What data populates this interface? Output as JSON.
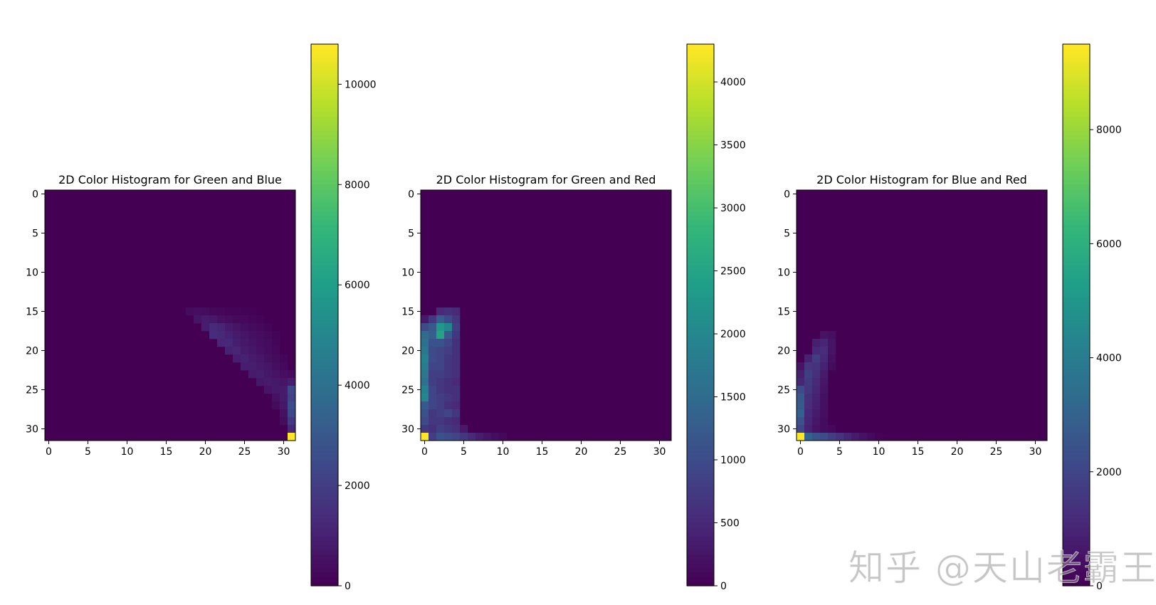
{
  "watermark": "知乎 @天山老霸王",
  "colormap": [
    "#440154",
    "#482878",
    "#3e4989",
    "#31688e",
    "#26828e",
    "#1f9e89",
    "#35b779",
    "#6ece58",
    "#b5de2b",
    "#fde725"
  ],
  "chart_data": [
    {
      "type": "heatmap",
      "title": "2D Color Histogram for Green and Blue",
      "xlabel": "",
      "ylabel": "",
      "xlim": [
        -0.5,
        31.5
      ],
      "ylim": [
        31.5,
        -0.5
      ],
      "xticks": [
        0,
        5,
        10,
        15,
        20,
        25,
        30
      ],
      "yticks": [
        0,
        5,
        10,
        15,
        20,
        25,
        30
      ],
      "colorbar": {
        "range": [
          0,
          10800
        ],
        "ticks": [
          0,
          2000,
          4000,
          6000,
          8000,
          10000
        ]
      },
      "cells": [
        [
          15,
          18,
          300
        ],
        [
          15,
          19,
          400
        ],
        [
          15,
          20,
          350
        ],
        [
          15,
          21,
          250
        ],
        [
          15,
          22,
          180
        ],
        [
          15,
          23,
          120
        ],
        [
          15,
          24,
          100
        ],
        [
          15,
          25,
          80
        ],
        [
          15,
          26,
          60
        ],
        [
          16,
          19,
          600
        ],
        [
          16,
          20,
          800
        ],
        [
          16,
          21,
          700
        ],
        [
          16,
          22,
          500
        ],
        [
          16,
          23,
          350
        ],
        [
          16,
          24,
          250
        ],
        [
          16,
          25,
          200
        ],
        [
          16,
          26,
          150
        ],
        [
          16,
          27,
          100
        ],
        [
          17,
          20,
          900
        ],
        [
          17,
          21,
          1300
        ],
        [
          17,
          22,
          1100
        ],
        [
          17,
          23,
          800
        ],
        [
          17,
          24,
          600
        ],
        [
          17,
          25,
          400
        ],
        [
          17,
          26,
          300
        ],
        [
          17,
          27,
          200
        ],
        [
          17,
          28,
          100
        ],
        [
          18,
          21,
          1400
        ],
        [
          18,
          22,
          1200
        ],
        [
          18,
          23,
          1000
        ],
        [
          18,
          24,
          800
        ],
        [
          18,
          25,
          600
        ],
        [
          18,
          26,
          450
        ],
        [
          18,
          27,
          350
        ],
        [
          18,
          28,
          200
        ],
        [
          18,
          29,
          100
        ],
        [
          19,
          22,
          1100
        ],
        [
          19,
          23,
          1200
        ],
        [
          19,
          24,
          900
        ],
        [
          19,
          25,
          700
        ],
        [
          19,
          26,
          550
        ],
        [
          19,
          27,
          400
        ],
        [
          19,
          28,
          300
        ],
        [
          19,
          29,
          150
        ],
        [
          20,
          23,
          1000
        ],
        [
          20,
          24,
          1100
        ],
        [
          20,
          25,
          800
        ],
        [
          20,
          26,
          650
        ],
        [
          20,
          27,
          500
        ],
        [
          20,
          28,
          350
        ],
        [
          20,
          29,
          200
        ],
        [
          21,
          24,
          900
        ],
        [
          21,
          25,
          1000
        ],
        [
          21,
          26,
          800
        ],
        [
          21,
          27,
          650
        ],
        [
          21,
          28,
          450
        ],
        [
          21,
          29,
          300
        ],
        [
          21,
          30,
          150
        ],
        [
          22,
          25,
          900
        ],
        [
          22,
          26,
          900
        ],
        [
          22,
          27,
          750
        ],
        [
          22,
          28,
          600
        ],
        [
          22,
          29,
          400
        ],
        [
          22,
          30,
          250
        ],
        [
          23,
          26,
          800
        ],
        [
          23,
          27,
          850
        ],
        [
          23,
          28,
          700
        ],
        [
          23,
          29,
          550
        ],
        [
          23,
          30,
          400
        ],
        [
          23,
          31,
          300
        ],
        [
          24,
          27,
          700
        ],
        [
          24,
          28,
          800
        ],
        [
          24,
          29,
          700
        ],
        [
          24,
          30,
          600
        ],
        [
          24,
          31,
          900
        ],
        [
          25,
          28,
          600
        ],
        [
          25,
          29,
          750
        ],
        [
          25,
          30,
          800
        ],
        [
          25,
          31,
          2400
        ],
        [
          26,
          29,
          500
        ],
        [
          26,
          30,
          800
        ],
        [
          26,
          31,
          2200
        ],
        [
          27,
          29,
          300
        ],
        [
          27,
          30,
          700
        ],
        [
          27,
          31,
          2600
        ],
        [
          28,
          30,
          500
        ],
        [
          28,
          31,
          2400
        ],
        [
          29,
          30,
          300
        ],
        [
          29,
          31,
          1800
        ],
        [
          30,
          31,
          1200
        ],
        [
          31,
          31,
          10800
        ]
      ]
    },
    {
      "type": "heatmap",
      "title": "2D Color Histogram for Green and Red",
      "xlabel": "",
      "ylabel": "",
      "xlim": [
        -0.5,
        31.5
      ],
      "ylim": [
        31.5,
        -0.5
      ],
      "xticks": [
        0,
        5,
        10,
        15,
        20,
        25,
        30
      ],
      "yticks": [
        0,
        5,
        10,
        15,
        20,
        25,
        30
      ],
      "colorbar": {
        "range": [
          0,
          4300
        ],
        "ticks": [
          0,
          500,
          1000,
          1500,
          2000,
          2500,
          3000,
          3500,
          4000
        ]
      },
      "cells": [
        [
          15,
          2,
          500
        ],
        [
          15,
          3,
          600
        ],
        [
          15,
          4,
          500
        ],
        [
          16,
          0,
          300
        ],
        [
          16,
          1,
          700
        ],
        [
          16,
          2,
          1300
        ],
        [
          16,
          3,
          1000
        ],
        [
          16,
          4,
          700
        ],
        [
          17,
          0,
          1000
        ],
        [
          17,
          1,
          1200
        ],
        [
          17,
          2,
          2300
        ],
        [
          17,
          3,
          2000
        ],
        [
          17,
          4,
          800
        ],
        [
          18,
          0,
          1500
        ],
        [
          18,
          1,
          1300
        ],
        [
          18,
          2,
          2500
        ],
        [
          18,
          3,
          1200
        ],
        [
          18,
          4,
          700
        ],
        [
          19,
          0,
          1600
        ],
        [
          19,
          1,
          1100
        ],
        [
          19,
          2,
          1100
        ],
        [
          19,
          3,
          900
        ],
        [
          19,
          4,
          600
        ],
        [
          20,
          0,
          1700
        ],
        [
          20,
          1,
          1000
        ],
        [
          20,
          2,
          900
        ],
        [
          20,
          3,
          800
        ],
        [
          20,
          4,
          600
        ],
        [
          21,
          0,
          1900
        ],
        [
          21,
          1,
          1000
        ],
        [
          21,
          2,
          900
        ],
        [
          21,
          3,
          700
        ],
        [
          21,
          4,
          600
        ],
        [
          22,
          0,
          1800
        ],
        [
          22,
          1,
          900
        ],
        [
          22,
          2,
          900
        ],
        [
          22,
          3,
          700
        ],
        [
          22,
          4,
          600
        ],
        [
          23,
          0,
          1700
        ],
        [
          23,
          1,
          800
        ],
        [
          23,
          2,
          800
        ],
        [
          23,
          3,
          700
        ],
        [
          23,
          4,
          600
        ],
        [
          24,
          0,
          1600
        ],
        [
          24,
          1,
          800
        ],
        [
          24,
          2,
          700
        ],
        [
          24,
          3,
          600
        ],
        [
          24,
          4,
          500
        ],
        [
          25,
          0,
          1900
        ],
        [
          25,
          1,
          900
        ],
        [
          25,
          2,
          700
        ],
        [
          25,
          3,
          600
        ],
        [
          25,
          4,
          600
        ],
        [
          26,
          0,
          2000
        ],
        [
          26,
          1,
          900
        ],
        [
          26,
          2,
          800
        ],
        [
          26,
          3,
          700
        ],
        [
          26,
          4,
          600
        ],
        [
          27,
          0,
          1200
        ],
        [
          27,
          1,
          900
        ],
        [
          27,
          2,
          800
        ],
        [
          27,
          3,
          600
        ],
        [
          27,
          4,
          500
        ],
        [
          28,
          0,
          1100
        ],
        [
          28,
          1,
          700
        ],
        [
          28,
          2,
          800
        ],
        [
          28,
          3,
          900
        ],
        [
          28,
          4,
          700
        ],
        [
          29,
          0,
          1000
        ],
        [
          29,
          1,
          700
        ],
        [
          29,
          2,
          700
        ],
        [
          29,
          3,
          600
        ],
        [
          29,
          4,
          500
        ],
        [
          30,
          0,
          700
        ],
        [
          30,
          1,
          600
        ],
        [
          30,
          2,
          800
        ],
        [
          30,
          3,
          700
        ],
        [
          30,
          4,
          600
        ],
        [
          30,
          5,
          300
        ],
        [
          31,
          0,
          4300
        ],
        [
          31,
          1,
          800
        ],
        [
          31,
          2,
          1100
        ],
        [
          31,
          3,
          1000
        ],
        [
          31,
          4,
          900
        ],
        [
          31,
          5,
          700
        ],
        [
          31,
          6,
          500
        ],
        [
          31,
          7,
          350
        ],
        [
          31,
          8,
          250
        ],
        [
          31,
          9,
          150
        ],
        [
          31,
          10,
          80
        ]
      ]
    },
    {
      "type": "heatmap",
      "title": "2D Color Histogram for Blue and Red",
      "xlabel": "",
      "ylabel": "",
      "xlim": [
        -0.5,
        31.5
      ],
      "ylim": [
        31.5,
        -0.5
      ],
      "xticks": [
        0,
        5,
        10,
        15,
        20,
        25,
        30
      ],
      "yticks": [
        0,
        5,
        10,
        15,
        20,
        25,
        30
      ],
      "colorbar": {
        "range": [
          0,
          9500
        ],
        "ticks": [
          0,
          2000,
          4000,
          6000,
          8000
        ]
      },
      "cells": [
        [
          18,
          3,
          500
        ],
        [
          18,
          4,
          400
        ],
        [
          19,
          2,
          800
        ],
        [
          19,
          3,
          1000
        ],
        [
          19,
          4,
          500
        ],
        [
          20,
          2,
          1100
        ],
        [
          20,
          3,
          1200
        ],
        [
          20,
          4,
          500
        ],
        [
          21,
          1,
          900
        ],
        [
          21,
          2,
          1700
        ],
        [
          21,
          3,
          1100
        ],
        [
          21,
          4,
          400
        ],
        [
          22,
          0,
          500
        ],
        [
          22,
          1,
          1500
        ],
        [
          22,
          2,
          1400
        ],
        [
          22,
          3,
          900
        ],
        [
          22,
          4,
          300
        ],
        [
          23,
          0,
          800
        ],
        [
          23,
          1,
          1800
        ],
        [
          23,
          2,
          1300
        ],
        [
          23,
          3,
          700
        ],
        [
          24,
          0,
          1000
        ],
        [
          24,
          1,
          1600
        ],
        [
          24,
          2,
          1100
        ],
        [
          24,
          3,
          600
        ],
        [
          25,
          0,
          2200
        ],
        [
          25,
          1,
          1500
        ],
        [
          25,
          2,
          1000
        ],
        [
          25,
          3,
          500
        ],
        [
          26,
          0,
          2600
        ],
        [
          26,
          1,
          1300
        ],
        [
          26,
          2,
          900
        ],
        [
          26,
          3,
          400
        ],
        [
          27,
          0,
          2700
        ],
        [
          27,
          1,
          1200
        ],
        [
          27,
          2,
          800
        ],
        [
          27,
          3,
          400
        ],
        [
          28,
          0,
          2900
        ],
        [
          28,
          1,
          1100
        ],
        [
          28,
          2,
          700
        ],
        [
          28,
          3,
          350
        ],
        [
          29,
          0,
          2400
        ],
        [
          29,
          1,
          1000
        ],
        [
          29,
          2,
          600
        ],
        [
          29,
          3,
          300
        ],
        [
          30,
          0,
          2000
        ],
        [
          30,
          1,
          900
        ],
        [
          30,
          2,
          500
        ],
        [
          30,
          3,
          300
        ],
        [
          30,
          4,
          200
        ],
        [
          31,
          0,
          9500
        ],
        [
          31,
          1,
          3000
        ],
        [
          31,
          2,
          2500
        ],
        [
          31,
          3,
          2200
        ],
        [
          31,
          4,
          1800
        ],
        [
          31,
          5,
          1400
        ],
        [
          31,
          6,
          1000
        ],
        [
          31,
          7,
          700
        ],
        [
          31,
          8,
          450
        ],
        [
          31,
          9,
          250
        ],
        [
          31,
          10,
          120
        ]
      ]
    }
  ]
}
